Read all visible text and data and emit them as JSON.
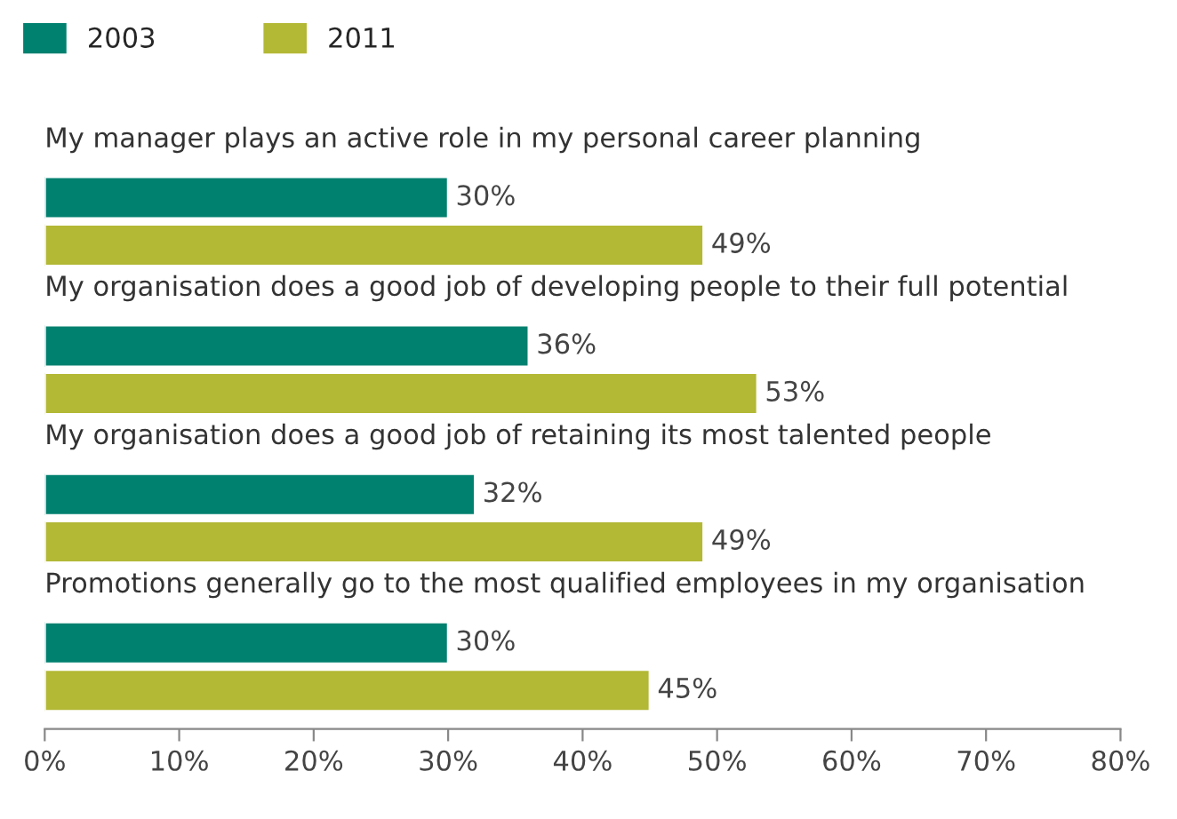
{
  "chart_data": {
    "type": "bar",
    "orientation": "horizontal",
    "categories": [
      "My manager plays an active role in my personal career planning",
      "My organisation does a good job of developing people to their full potential",
      "My organisation does a good job of retaining its most talented people",
      "Promotions generally go to the most qualified employees in my organisation"
    ],
    "series": [
      {
        "name": "2003",
        "color": "#00806f",
        "values": [
          30,
          36,
          32,
          30
        ],
        "value_labels": [
          "30%",
          "36%",
          "32%",
          "30%"
        ]
      },
      {
        "name": "2011",
        "color": "#b3b835",
        "values": [
          49,
          53,
          49,
          45
        ],
        "value_labels": [
          "49%",
          "53%",
          "49%",
          "45%"
        ]
      }
    ],
    "xlim": [
      0,
      80
    ],
    "xticks": [
      {
        "value": 0,
        "label": "0%"
      },
      {
        "value": 10,
        "label": "10%"
      },
      {
        "value": 20,
        "label": "20%"
      },
      {
        "value": 30,
        "label": "30%"
      },
      {
        "value": 40,
        "label": "40%"
      },
      {
        "value": 50,
        "label": "50%"
      },
      {
        "value": 60,
        "label": "60%"
      },
      {
        "value": 70,
        "label": "70%"
      },
      {
        "value": 80,
        "label": "80%"
      }
    ],
    "legend": "top left",
    "grid": false
  }
}
